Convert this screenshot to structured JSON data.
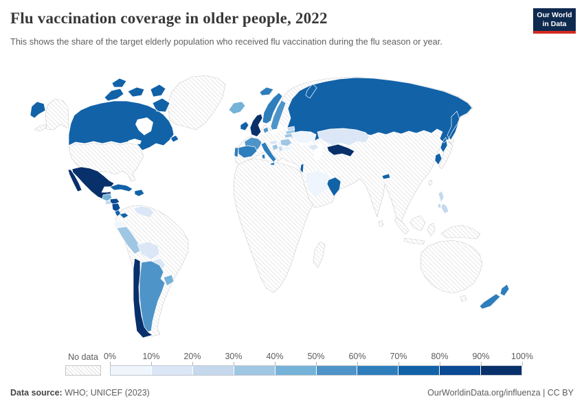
{
  "header": {
    "title": "Flu vaccination coverage in older people, 2022",
    "logo": {
      "line1": "Our World",
      "line2": "in Data"
    }
  },
  "subtitle": "This shows the share of the target elderly population who received flu vaccination during the flu season or year.",
  "legend": {
    "no_data_label": "No data",
    "tick_labels": [
      "0%",
      "10%",
      "20%",
      "30%",
      "40%",
      "50%",
      "60%",
      "70%",
      "80%",
      "90%",
      "100%"
    ],
    "bin_colors": [
      "#eff5fc",
      "#dbe7f6",
      "#c5d8ed",
      "#9fc6e3",
      "#74b2d8",
      "#4e94c8",
      "#2e7ebc",
      "#1262a8",
      "#0b4a94",
      "#08306b"
    ]
  },
  "footer": {
    "source_label": "Data source:",
    "source_text": "WHO; UNICEF (2023)",
    "right_text": "OurWorldinData.org/influenza | CC BY"
  },
  "chart_data": {
    "type": "heatmap",
    "subtype": "choropleth-world-map",
    "title": "Flu vaccination coverage in older people, 2022",
    "unit": "% of target elderly population",
    "legend_bins": [
      "0-10%",
      "10-20%",
      "20-30%",
      "30-40%",
      "40-50%",
      "50-60%",
      "60-70%",
      "70-80%",
      "80-90%",
      "90-100%"
    ],
    "regions": {
      "mexico": {
        "name": "Mexico",
        "coverage_bin": "90-100%"
      },
      "chile": {
        "name": "Chile",
        "coverage_bin": "90-100%"
      },
      "uk": {
        "name": "United Kingdom",
        "coverage_bin": "90-100%"
      },
      "uzbekistan": {
        "name": "Uzbekistan",
        "coverage_bin": "90-100%"
      },
      "honduras": {
        "name": "Honduras",
        "coverage_bin": "80-90%"
      },
      "nicaragua": {
        "name": "Nicaragua",
        "coverage_bin": "80-90%"
      },
      "canada": {
        "name": "Canada",
        "coverage_bin": "70-80%"
      },
      "russia": {
        "name": "Russia",
        "coverage_bin": "70-80%"
      },
      "cuba": {
        "name": "Cuba",
        "coverage_bin": "70-80%"
      },
      "dominican-republic": {
        "name": "Dominican Republic",
        "coverage_bin": "70-80%"
      },
      "costa-rica": {
        "name": "Costa Rica",
        "coverage_bin": "70-80%"
      },
      "panama": {
        "name": "Panama",
        "coverage_bin": "70-80%"
      },
      "ireland": {
        "name": "Ireland",
        "coverage_bin": "70-80%"
      },
      "israel": {
        "name": "Israel",
        "coverage_bin": "70-80%"
      },
      "oman": {
        "name": "Oman & UAE",
        "coverage_bin": "70-80%"
      },
      "bhutan": {
        "name": "Bhutan",
        "coverage_bin": "70-80%"
      },
      "south-korea": {
        "name": "South Korea",
        "coverage_bin": "70-80%"
      },
      "norway": {
        "name": "Norway",
        "coverage_bin": "60-70%"
      },
      "spain": {
        "name": "Spain",
        "coverage_bin": "60-70%"
      },
      "portugal": {
        "name": "Portugal",
        "coverage_bin": "60-70%"
      },
      "italy": {
        "name": "Italy",
        "coverage_bin": "60-70%"
      },
      "new-zealand": {
        "name": "New Zealand",
        "coverage_bin": "60-70%"
      },
      "france": {
        "name": "France",
        "coverage_bin": "50-60%"
      },
      "sweden": {
        "name": "Sweden",
        "coverage_bin": "50-60%"
      },
      "denmark": {
        "name": "Denmark",
        "coverage_bin": "50-60%"
      },
      "argentina": {
        "name": "Argentina",
        "coverage_bin": "50-60%"
      },
      "iceland": {
        "name": "Iceland",
        "coverage_bin": "40-50%"
      },
      "guatemala": {
        "name": "Guatemala",
        "coverage_bin": "40-50%"
      },
      "uruguay": {
        "name": "Uruguay",
        "coverage_bin": "40-50%"
      },
      "peru": {
        "name": "Peru",
        "coverage_bin": "30-40%"
      },
      "romania": {
        "name": "Romania",
        "coverage_bin": "30-40%"
      },
      "croatia": {
        "name": "Croatia",
        "coverage_bin": "30-40%"
      },
      "latvia": {
        "name": "Latvia",
        "coverage_bin": "30-40%"
      },
      "lithuania": {
        "name": "Lithuania",
        "coverage_bin": "30-40%"
      },
      "el-salvador": {
        "name": "El Salvador",
        "coverage_bin": "20-30%"
      },
      "philippines": {
        "name": "Philippines",
        "coverage_bin": "20-30%"
      },
      "estonia": {
        "name": "Estonia",
        "coverage_bin": "20-30%"
      },
      "serbia": {
        "name": "Serbia",
        "coverage_bin": "20-30%"
      },
      "kazakhstan": {
        "name": "Kazakhstan",
        "coverage_bin": "10-20%"
      },
      "venezuela": {
        "name": "Venezuela",
        "coverage_bin": "10-20%"
      },
      "bolivia": {
        "name": "Bolivia",
        "coverage_bin": "10-20%"
      },
      "paraguay": {
        "name": "Paraguay",
        "coverage_bin": "10-20%"
      },
      "austria": {
        "name": "Austria",
        "coverage_bin": "10-20%"
      },
      "georgia-azerbaijan": {
        "name": "Caucasus (Georgia/Azerbaijan)",
        "coverage_bin": "10-20%"
      },
      "ukraine": {
        "name": "Ukraine",
        "coverage_bin": "0-10%"
      },
      "saudi-arabia": {
        "name": "Saudi Arabia",
        "coverage_bin": "0-10%"
      },
      "ecuador": {
        "name": "Ecuador",
        "coverage_bin": "0-10%"
      },
      "hungary": {
        "name": "Hungary",
        "coverage_bin": "0-10%"
      },
      "bulgaria": {
        "name": "Bulgaria",
        "coverage_bin": "0-10%"
      }
    },
    "no_data_regions": [
      "United States",
      "Greenland",
      "Colombia",
      "Brazil",
      "most of Africa",
      "Madagascar",
      "Germany",
      "Poland",
      "Czechia",
      "Switzerland",
      "Netherlands",
      "Belgium",
      "Belarus",
      "Greece",
      "Turkey",
      "Iraq",
      "Iran",
      "Yemen",
      "Afghanistan",
      "Pakistan",
      "India",
      "China",
      "Mongolia",
      "Japan",
      "Southeast Asia",
      "Indonesia",
      "Papua New Guinea",
      "Australia"
    ]
  }
}
